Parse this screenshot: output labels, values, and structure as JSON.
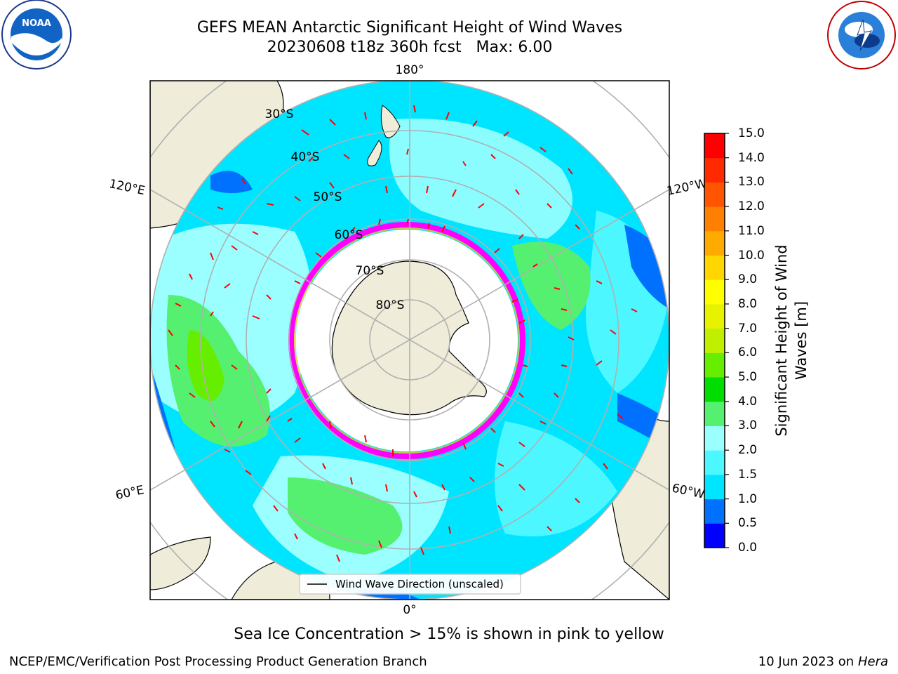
{
  "header": {
    "title_line1": "GEFS MEAN Antarctic Significant Height of Wind Waves",
    "title_line2": "20230608 t18z 360h fcst   Max: 6.00",
    "noaa_logo_text": "NOAA",
    "noaa_ring_text": "NATIONAL OCEANIC AND ATMOSPHERIC ADMINISTRATION",
    "noaa_ring_text_bottom": "U.S. DEPARTMENT OF COMMERCE",
    "nws_ring_text": "NATIONAL WEATHER SERVICE"
  },
  "map": {
    "longitude_labels": {
      "top": "180°",
      "bottom": "0°",
      "upper_left": "120°E",
      "upper_right": "120°W",
      "lower_left": "60°E",
      "lower_right": "60°W"
    },
    "latitude_labels": [
      "30°S",
      "40°S",
      "50°S",
      "60°S",
      "70°S",
      "80°S"
    ],
    "legend_label": "Wind Wave Direction (unscaled)",
    "colors": {
      "land": "#efecd9",
      "ice_white": "#ffffff",
      "ice_edge_magenta": "#ff00ff",
      "arrow": "#ff0000",
      "gridline": "#b0b0b0"
    }
  },
  "colorbar": {
    "title": "Significant Height of Wind Waves [m]",
    "title_line1": "Significant Height of Wind",
    "title_line2": "Waves [m]",
    "ticks": [
      "0.0",
      "0.5",
      "1.0",
      "1.5",
      "2.0",
      "3.0",
      "4.0",
      "5.0",
      "6.0",
      "7.0",
      "8.0",
      "9.0",
      "10.0",
      "11.0",
      "12.0",
      "13.0",
      "14.0",
      "15.0"
    ],
    "colors": [
      "#0000ff",
      "#0070ff",
      "#00e5ff",
      "#4df7ff",
      "#9bffff",
      "#55f070",
      "#00dd00",
      "#66ee00",
      "#c0f000",
      "#e6f200",
      "#ffff00",
      "#ffd600",
      "#ffaa00",
      "#ff8000",
      "#ff5500",
      "#ff2a00",
      "#ff0000"
    ]
  },
  "notes": {
    "sea_ice": "Sea Ice Concentration > 15% is shown in pink to yellow"
  },
  "footer": {
    "left": "NCEP/EMC/Verification Post Processing Product Generation Branch",
    "date": "10 Jun 2023 on",
    "machine": "Hera"
  }
}
